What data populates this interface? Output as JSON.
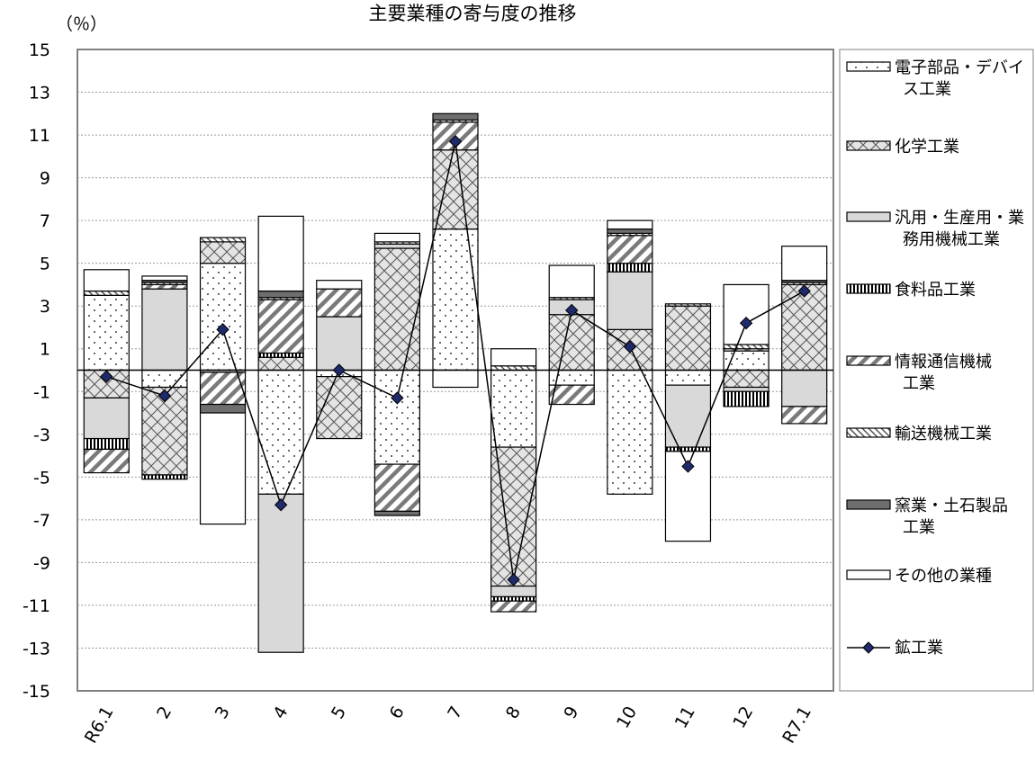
{
  "chart_data": {
    "type": "bar",
    "title": "主要業種の寄与度の推移",
    "unit_label": "（％）",
    "xlabel": "",
    "ylabel": "",
    "ylim": [
      -15,
      15
    ],
    "yticks": [
      15,
      13,
      11,
      9,
      7,
      5,
      3,
      1,
      -1,
      -3,
      -5,
      -7,
      -9,
      -11,
      -13,
      -15
    ],
    "grid": true,
    "legend_position": "right",
    "categories": [
      "R6.1",
      "2",
      "3",
      "4",
      "5",
      "6",
      "7",
      "8",
      "9",
      "10",
      "11",
      "12",
      "R7.1"
    ],
    "series": [
      {
        "name": "電子部品・デバイス工業",
        "key": "electronic",
        "pattern": "dots",
        "values": [
          3.5,
          -0.8,
          5.0,
          -5.8,
          -0.3,
          -4.4,
          6.6,
          -3.6,
          -0.7,
          -5.8,
          -0.7,
          0.9,
          0.0
        ]
      },
      {
        "name": "化学工業",
        "key": "chemical",
        "pattern": "cross",
        "values": [
          -1.3,
          -4.1,
          1.0,
          0.6,
          -2.9,
          5.7,
          3.7,
          -6.5,
          2.6,
          1.9,
          3.0,
          -0.8,
          4.0
        ]
      },
      {
        "name": "汎用・生産用・業務用機械工業",
        "key": "machinery",
        "pattern": "gray",
        "values": [
          -1.9,
          3.8,
          -0.1,
          -7.4,
          2.5,
          0.2,
          0.0,
          -0.5,
          0.7,
          2.7,
          -2.9,
          -0.2,
          -1.7
        ]
      },
      {
        "name": "食料品工業",
        "key": "food",
        "pattern": "vlines",
        "values": [
          -0.5,
          -0.2,
          0.0,
          0.2,
          0.0,
          0.0,
          0.0,
          -0.2,
          0.0,
          0.4,
          -0.2,
          -0.7,
          0.0
        ]
      },
      {
        "name": "情報通信機械工業",
        "key": "ict",
        "pattern": "diag",
        "values": [
          -1.1,
          0.2,
          -1.5,
          2.5,
          1.3,
          -2.2,
          1.3,
          -0.5,
          -0.9,
          1.3,
          0.0,
          0.1,
          -0.8
        ]
      },
      {
        "name": "輸送機械工業",
        "key": "transport",
        "pattern": "diagfine",
        "values": [
          0.2,
          0.1,
          0.2,
          0.1,
          0.0,
          0.1,
          0.1,
          0.2,
          0.1,
          0.1,
          0.1,
          0.2,
          0.1
        ]
      },
      {
        "name": "窯業・土石製品工業",
        "key": "ceramics",
        "pattern": "dark",
        "values": [
          0.0,
          0.1,
          -0.4,
          0.3,
          0.0,
          -0.2,
          0.3,
          0.0,
          0.0,
          0.2,
          0.0,
          0.0,
          0.1
        ]
      },
      {
        "name": "その他の業種",
        "key": "other",
        "pattern": "white",
        "values": [
          1.0,
          0.2,
          -5.2,
          3.5,
          0.4,
          0.4,
          -0.8,
          0.8,
          1.5,
          0.4,
          -4.2,
          2.8,
          1.6
        ]
      }
    ],
    "line": {
      "name": "鉱工業",
      "key": "mining",
      "values": [
        -0.3,
        -1.2,
        1.9,
        -6.3,
        0.0,
        -1.3,
        10.7,
        -9.8,
        2.8,
        1.1,
        -4.5,
        2.2,
        3.7
      ]
    }
  }
}
